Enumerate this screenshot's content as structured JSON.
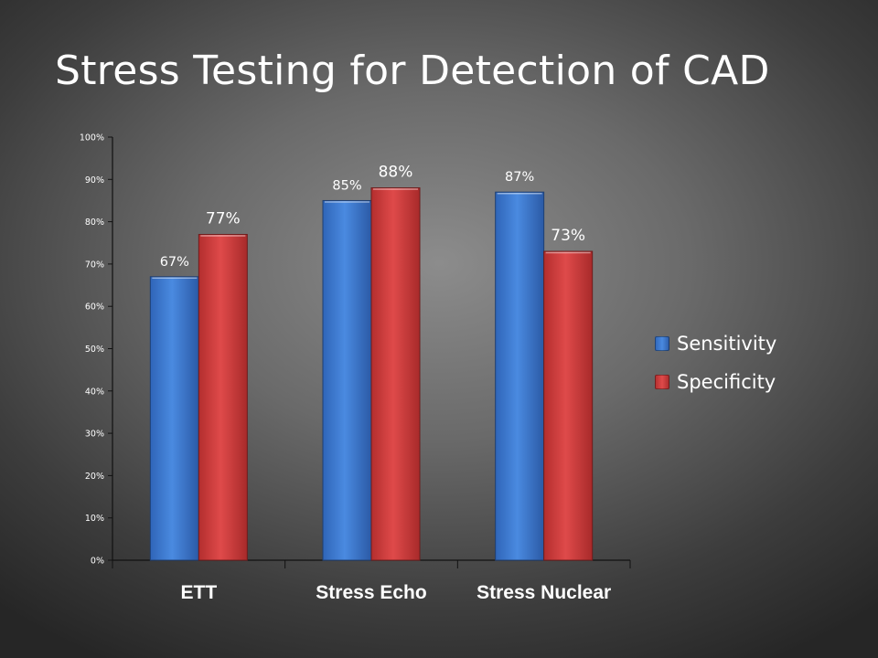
{
  "slide": {
    "title": "Stress Testing for Detection of CAD"
  },
  "chart_data": {
    "type": "bar",
    "categories": [
      "ETT",
      "Stress Echo",
      "Stress Nuclear"
    ],
    "series": [
      {
        "name": "Sensitivity",
        "values": [
          67,
          85,
          87
        ],
        "labels": [
          "67%",
          "85%",
          "87%"
        ],
        "color": "#3f7fd6"
      },
      {
        "name": "Specificity",
        "values": [
          77,
          88,
          73
        ],
        "labels": [
          "77%",
          "88%",
          "73%"
        ],
        "color": "#d63f3f"
      }
    ],
    "ylim": [
      0,
      100
    ],
    "ytick_values": [
      0,
      10,
      20,
      30,
      40,
      50,
      60,
      70,
      80,
      90,
      100
    ],
    "ytick_labels": [
      "0%",
      "10%",
      "20%",
      "30%",
      "40%",
      "50%",
      "60%",
      "70%",
      "80%",
      "90%",
      "100%"
    ],
    "grid": false,
    "legend_position": "right",
    "xlabel": "",
    "ylabel": ""
  }
}
